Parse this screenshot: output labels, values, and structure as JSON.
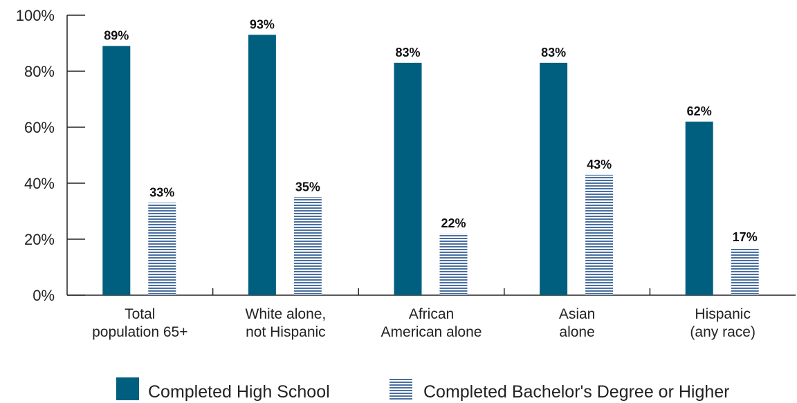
{
  "chart_data": {
    "type": "bar",
    "categories": [
      [
        "Total",
        "population 65+"
      ],
      [
        "White alone,",
        "not Hispanic"
      ],
      [
        "African",
        "American alone"
      ],
      [
        "Asian",
        "alone"
      ],
      [
        "Hispanic",
        "(any race)"
      ]
    ],
    "series": [
      {
        "name": "Completed High School",
        "values": [
          89,
          93,
          83,
          83,
          62
        ],
        "labels": [
          "89%",
          "93%",
          "83%",
          "83%",
          "62%"
        ],
        "color": "#005f7f",
        "pattern": "solid"
      },
      {
        "name": "Completed Bachelor's Degree or Higher",
        "values": [
          33,
          35,
          22,
          43,
          17
        ],
        "labels": [
          "33%",
          "35%",
          "22%",
          "43%",
          "17%"
        ],
        "color": "#4a6fa0",
        "pattern": "horizontal-lines"
      }
    ],
    "ylim": [
      0,
      100
    ],
    "yticks": [
      0,
      20,
      40,
      60,
      80,
      100
    ],
    "ytick_labels": [
      "0%",
      "20%",
      "40%",
      "60%",
      "80%",
      "100%"
    ],
    "grid": false,
    "legend_position": "bottom"
  }
}
